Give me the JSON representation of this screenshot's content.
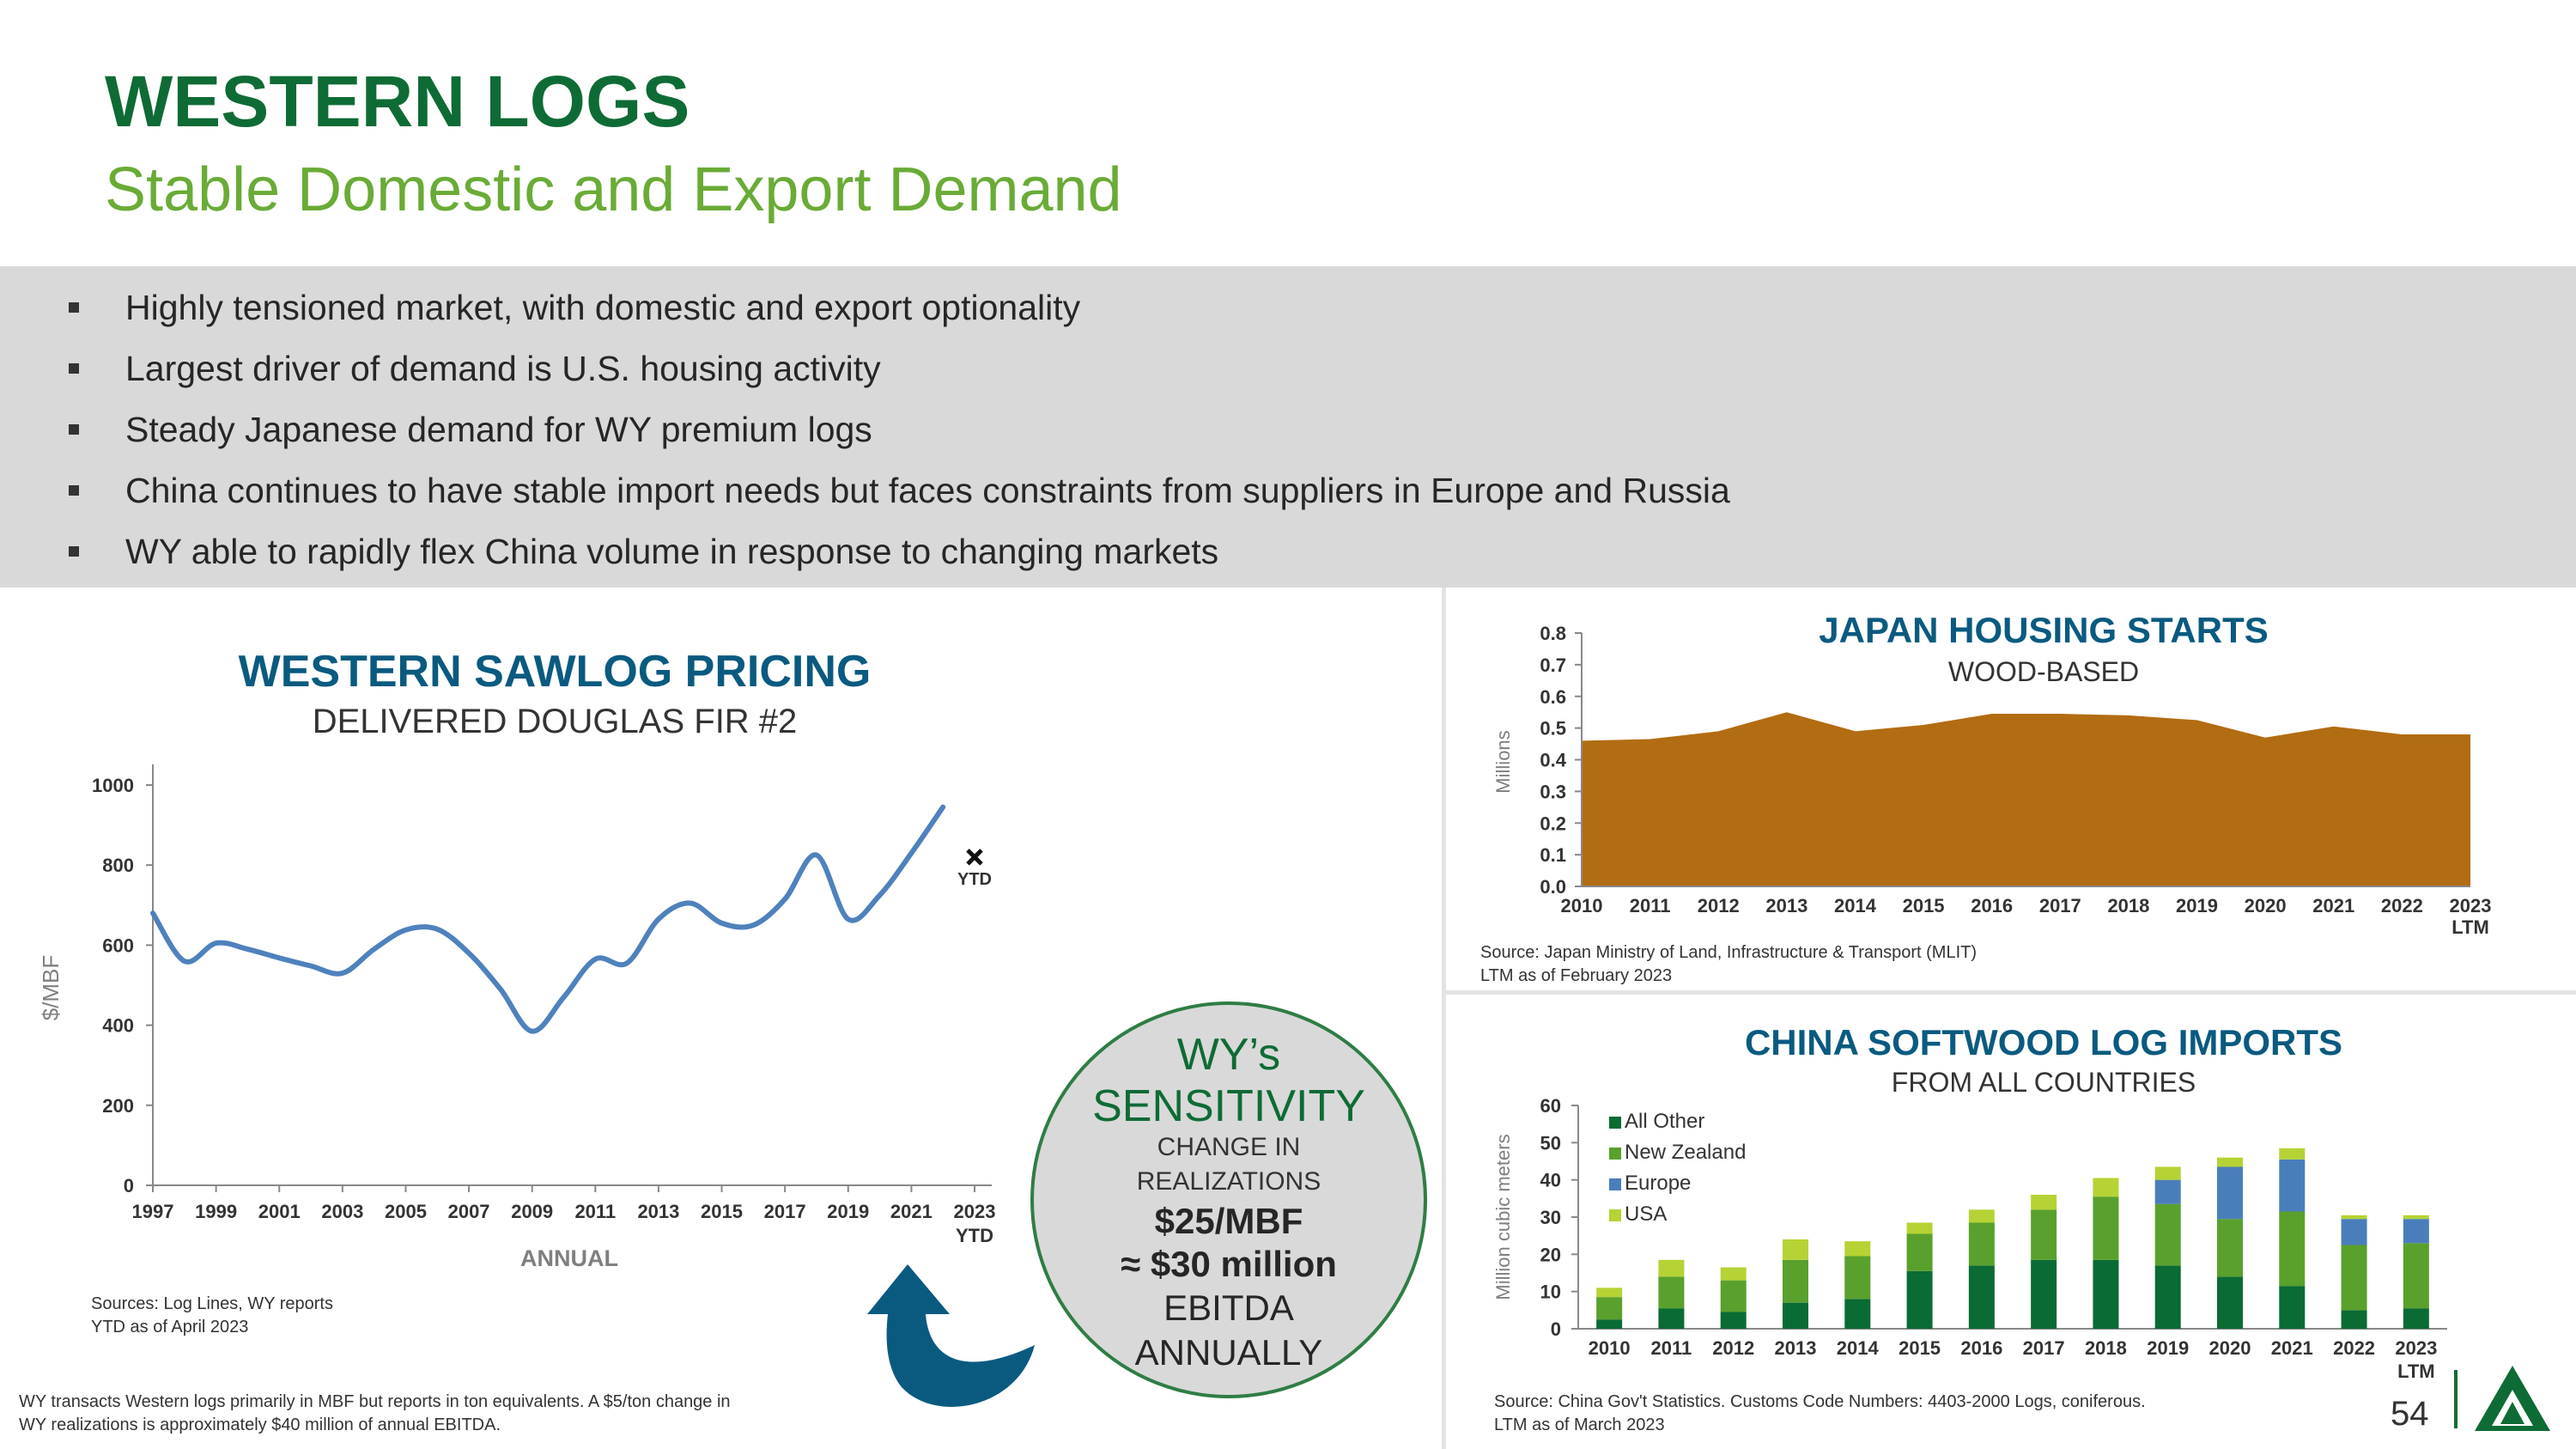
{
  "header": {
    "title": "WESTERN LOGS",
    "subtitle": "Stable Domestic and Export Demand"
  },
  "bullets": [
    "Highly tensioned market, with domestic and export optionality",
    "Largest driver of demand is U.S. housing activity",
    "Steady Japanese demand for WY premium logs",
    "China continues to have stable import needs but faces constraints from suppliers in Europe and Russia",
    "WY able to rapidly flex China volume in response to changing markets"
  ],
  "sawlog": {
    "title": "WESTERN SAWLOG PRICING",
    "subtitle": "DELIVERED DOUGLAS FIR #2",
    "ylabel": "$/MBF",
    "xlabel": "ANNUAL",
    "ytd_marker_label": "YTD",
    "sources": "Sources: Log Lines, WY reports",
    "asof": "YTD as of April 2023",
    "footnote_line1": "WY transacts Western logs primarily in MBF but reports in ton equivalents. A $5/ton change in",
    "footnote_line2": "WY realizations is approximately $40 million of annual EBITDA."
  },
  "sensitivity": {
    "line1": "WY’s",
    "line2": "SENSITIVITY",
    "line3": "CHANGE IN",
    "line4": "REALIZATIONS",
    "line5": "$25/MBF",
    "line6": "≈ $30 million",
    "line7": "EBITDA",
    "line8": "ANNUALLY"
  },
  "japan": {
    "title": "JAPAN HOUSING STARTS",
    "subtitle": "WOOD-BASED",
    "ylabel": "Millions",
    "source": "Source: Japan Ministry of Land, Infrastructure & Transport (MLIT)",
    "asof": "LTM as of February 2023"
  },
  "china": {
    "title": "CHINA SOFTWOOD LOG IMPORTS",
    "subtitle": "FROM ALL COUNTRIES",
    "ylabel": "Million cubic meters",
    "source": "Source: China Gov't Statistics. Customs Code Numbers: 4403-2000 Logs, coniferous.",
    "asof": "LTM as of March 2023"
  },
  "page_number": "54",
  "chart_data": [
    {
      "id": "sawlog",
      "type": "line",
      "title": "WESTERN SAWLOG PRICING",
      "subtitle": "DELIVERED DOUGLAS FIR #2",
      "xlabel": "ANNUAL",
      "ylabel": "$/MBF",
      "ylim": [
        0,
        1000
      ],
      "yticks": [
        0,
        200,
        400,
        600,
        800,
        1000
      ],
      "xtick_labels": [
        "1997",
        "1999",
        "2001",
        "2003",
        "2005",
        "2007",
        "2009",
        "2011",
        "2013",
        "2015",
        "2017",
        "2019",
        "2021",
        "2023"
      ],
      "xtick_sublabel": "YTD",
      "x": [
        1997,
        1998,
        1999,
        2000,
        2001,
        2002,
        2003,
        2004,
        2005,
        2006,
        2007,
        2008,
        2009,
        2010,
        2011,
        2012,
        2013,
        2014,
        2015,
        2016,
        2017,
        2018,
        2019,
        2020,
        2021,
        2022
      ],
      "values": [
        680,
        560,
        605,
        590,
        568,
        548,
        530,
        590,
        638,
        640,
        580,
        490,
        385,
        470,
        565,
        555,
        665,
        705,
        655,
        650,
        715,
        825,
        665,
        725,
        830,
        945
      ],
      "ytd": {
        "label": "YTD",
        "x": 2023,
        "value": 820
      },
      "color": "#4f81bd",
      "grid": false
    },
    {
      "id": "japan",
      "type": "area",
      "title": "JAPAN HOUSING STARTS",
      "subtitle": "WOOD-BASED",
      "ylabel": "Millions",
      "ylim": [
        0,
        0.8
      ],
      "yticks": [
        0.0,
        0.1,
        0.2,
        0.3,
        0.4,
        0.5,
        0.6,
        0.7,
        0.8
      ],
      "categories": [
        "2010",
        "2011",
        "2012",
        "2013",
        "2014",
        "2015",
        "2016",
        "2017",
        "2018",
        "2019",
        "2020",
        "2021",
        "2022",
        "2023"
      ],
      "last_category_sublabel": "LTM",
      "values": [
        0.46,
        0.465,
        0.49,
        0.55,
        0.49,
        0.51,
        0.545,
        0.545,
        0.54,
        0.525,
        0.47,
        0.505,
        0.48,
        0.48
      ],
      "color": "#b26c12",
      "grid": false
    },
    {
      "id": "china",
      "type": "bar",
      "stacked": true,
      "title": "CHINA SOFTWOOD LOG IMPORTS",
      "subtitle": "FROM ALL COUNTRIES",
      "ylabel": "Million cubic meters",
      "ylim": [
        0,
        60
      ],
      "yticks": [
        0,
        10,
        20,
        30,
        40,
        50,
        60
      ],
      "categories": [
        "2010",
        "2011",
        "2012",
        "2013",
        "2014",
        "2015",
        "2016",
        "2017",
        "2018",
        "2019",
        "2020",
        "2021",
        "2022",
        "2023"
      ],
      "last_category_sublabel": "LTM",
      "legend_position": "top-left",
      "series": [
        {
          "name": "All Other",
          "color": "#0a6b34",
          "values": [
            2.5,
            5.5,
            4.5,
            7.0,
            8.0,
            15.5,
            17.0,
            18.5,
            18.5,
            17.0,
            14.0,
            11.5,
            5.0,
            5.5
          ]
        },
        {
          "name": "New Zealand",
          "color": "#5aa02c",
          "values": [
            6.0,
            8.5,
            8.5,
            11.5,
            11.5,
            10.0,
            11.5,
            13.5,
            17.0,
            16.5,
            15.5,
            20.0,
            17.5,
            17.5
          ]
        },
        {
          "name": "Europe",
          "color": "#4a7ebb",
          "values": [
            0,
            0,
            0,
            0,
            0,
            0,
            0,
            0,
            0,
            6.5,
            14.0,
            14.0,
            7.0,
            6.5
          ]
        },
        {
          "name": "USA",
          "color": "#b5d334",
          "values": [
            2.5,
            4.5,
            3.5,
            5.5,
            4.0,
            3.0,
            3.5,
            4.0,
            5.0,
            3.5,
            2.5,
            3.0,
            1.0,
            1.0
          ]
        }
      ],
      "grid": false
    }
  ]
}
